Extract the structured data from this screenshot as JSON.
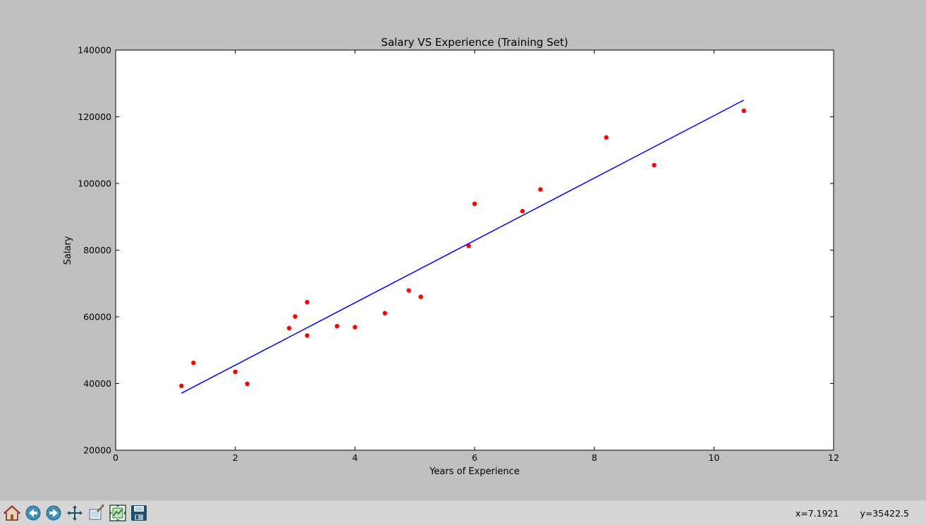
{
  "window": {
    "coords_x": "x=7.1921",
    "coords_y": "y=35422.5"
  },
  "toolbar": {
    "buttons": [
      {
        "name": "home-button",
        "icon": "home-icon"
      },
      {
        "name": "back-button",
        "icon": "back-arrow-icon"
      },
      {
        "name": "forward-button",
        "icon": "forward-arrow-icon"
      },
      {
        "name": "pan-button",
        "icon": "pan-move-icon"
      },
      {
        "name": "zoom-button",
        "icon": "zoom-rect-icon"
      },
      {
        "name": "subplots-button",
        "icon": "subplots-config-icon"
      },
      {
        "name": "save-button",
        "icon": "save-disk-icon"
      }
    ]
  },
  "chart_data": {
    "type": "scatter",
    "title": "Salary VS Experience (Training Set)",
    "xlabel": "Years of Experience",
    "ylabel": "Salary",
    "xlim": [
      0,
      12
    ],
    "ylim": [
      20000,
      140000
    ],
    "xticks": [
      "0",
      "2",
      "4",
      "6",
      "8",
      "10",
      "12"
    ],
    "yticks": [
      "20000",
      "40000",
      "60000",
      "80000",
      "100000",
      "120000",
      "140000"
    ],
    "grid": false,
    "series": [
      {
        "kind": "scatter",
        "color": "#ff0000",
        "x": [
          1.1,
          1.3,
          2.0,
          2.2,
          2.9,
          3.0,
          3.2,
          3.2,
          3.7,
          4.0,
          4.5,
          4.9,
          5.1,
          5.9,
          6.0,
          6.8,
          7.1,
          8.2,
          9.0,
          10.5
        ],
        "y": [
          39300,
          46200,
          43500,
          39900,
          56600,
          60100,
          54400,
          64400,
          57200,
          56900,
          61100,
          67900,
          66000,
          81300,
          93900,
          91700,
          98200,
          113800,
          105500,
          121800
        ]
      },
      {
        "kind": "line",
        "color": "#0000ff",
        "x": [
          1.1,
          10.5
        ],
        "y": [
          37100,
          125000
        ]
      }
    ]
  }
}
